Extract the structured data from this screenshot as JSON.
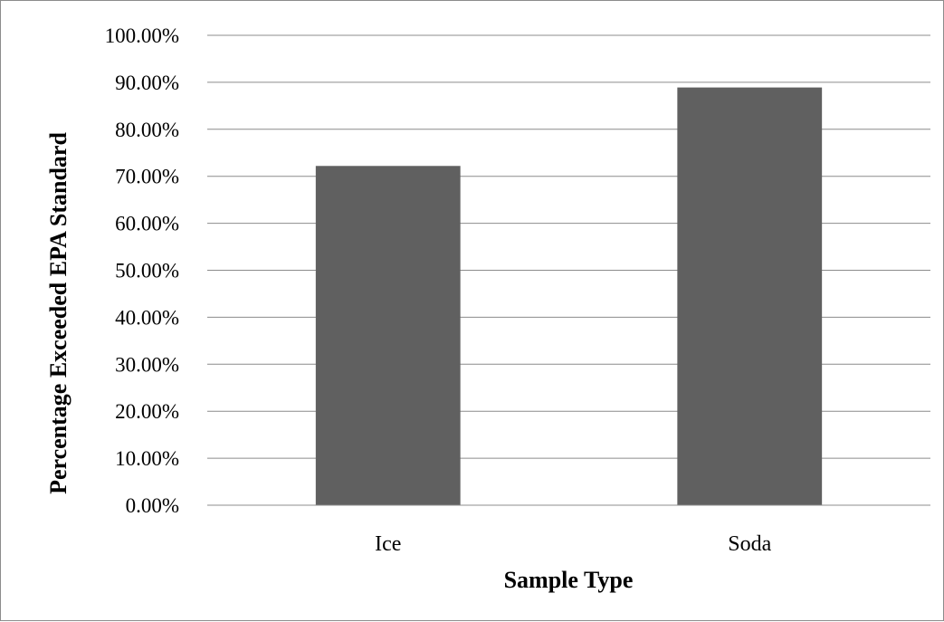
{
  "chart_data": {
    "type": "bar",
    "categories": [
      "Ice",
      "Soda"
    ],
    "values": [
      72.2,
      88.9
    ],
    "ylabel": "Percentage Exceeded EPA Standard",
    "xlabel": "Sample Type",
    "ylim": [
      0,
      100
    ],
    "yticks": [
      "0.00%",
      "10.00%",
      "20.00%",
      "30.00%",
      "40.00%",
      "50.00%",
      "60.00%",
      "70.00%",
      "80.00%",
      "90.00%",
      "100.00%"
    ],
    "grid": true,
    "legend": "none",
    "bar_color": "#606060"
  }
}
